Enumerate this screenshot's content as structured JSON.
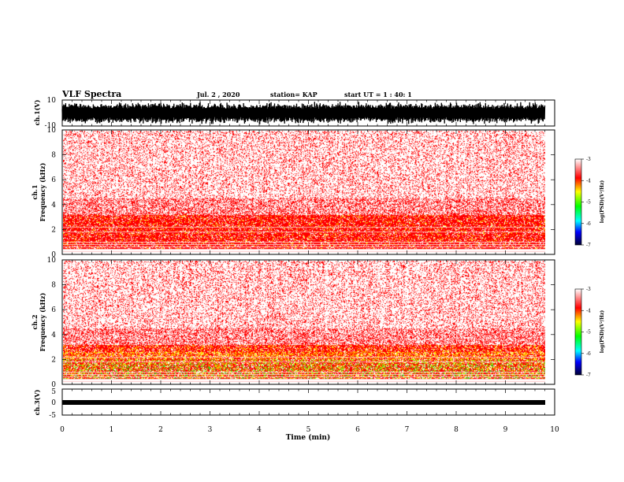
{
  "header": {
    "title": "VLF Spectra",
    "date": "Jul. 2 , 2020",
    "station": "station= KAP",
    "start_ut": "start UT =  1 : 40: 1"
  },
  "chart_data": [
    {
      "panel": "ch1-waveform",
      "type": "line",
      "ylabel": "ch.1(V)",
      "ylim": [
        -10,
        10
      ],
      "y_ticks": [
        "10",
        "-10"
      ],
      "x_range_min": [
        0,
        9.8
      ]
    },
    {
      "panel": "ch1-spectrogram",
      "type": "heatmap",
      "ylabel": "ch.1\nFrequency (kHz)",
      "ylim": [
        0,
        10
      ],
      "y_ticks": [
        "0",
        "2",
        "4",
        "6",
        "8",
        "10"
      ],
      "x_range_min": [
        0,
        9.8
      ],
      "colorbar": {
        "label": "log(PSD)(V²/Hz)",
        "range": [
          -7,
          -3
        ],
        "ticks": [
          "-3",
          "-4",
          "-5",
          "-6",
          "-7"
        ]
      }
    },
    {
      "panel": "ch2-spectrogram",
      "type": "heatmap",
      "ylabel": "ch.2\nFrequency (kHz)",
      "ylim": [
        0,
        10
      ],
      "y_ticks": [
        "0",
        "2",
        "4",
        "6",
        "8",
        "10"
      ],
      "x_range_min": [
        0,
        9.8
      ],
      "colorbar": {
        "label": "log(PSD)(V²/Hz)",
        "range": [
          -7,
          -3
        ],
        "ticks": [
          "-3",
          "-4",
          "-5",
          "-6",
          "-7"
        ]
      }
    },
    {
      "panel": "ch3-waveform",
      "type": "line",
      "ylabel": "ch.3(V)",
      "ylim": [
        -5,
        5
      ],
      "y_ticks": [
        "5",
        "0",
        "-5"
      ],
      "x_range_min": [
        0,
        9.8
      ],
      "xlabel": "Time (min)",
      "xlim": [
        0,
        10
      ],
      "x_ticks": [
        "0",
        "1",
        "2",
        "3",
        "4",
        "5",
        "6",
        "7",
        "8",
        "9",
        "10"
      ]
    }
  ]
}
